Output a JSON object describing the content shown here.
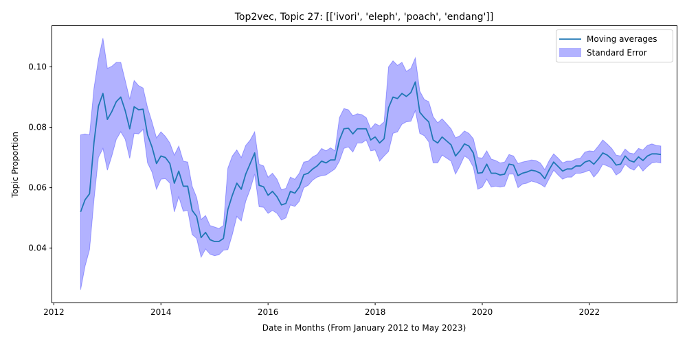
{
  "chart_data": {
    "type": "line",
    "title": "Top2vec, Topic 27: [['ivori', 'eleph', 'poach', 'endang']]",
    "xlabel": "Date in Months (From January 2012 to May 2023)",
    "ylabel": "Topic Proportion",
    "xlim": [
      2011.97,
      2023.63
    ],
    "ylim": [
      0.022,
      0.1135
    ],
    "x_ticks": [
      2012,
      2014,
      2016,
      2018,
      2020,
      2022
    ],
    "y_ticks": [
      0.04,
      0.06,
      0.08,
      0.1
    ],
    "y_tick_labels": [
      "0.04",
      "0.06",
      "0.08",
      "0.10"
    ],
    "grid": false,
    "legend_position": "top-right",
    "colors": {
      "line": "#1f77b4",
      "band": "#0000ff",
      "band_opacity": 0.3
    },
    "series": [
      {
        "name": "Moving averages",
        "x": [
          2012.5,
          2012.583,
          2012.667,
          2012.75,
          2012.833,
          2012.917,
          2013,
          2013.083,
          2013.167,
          2013.25,
          2013.333,
          2013.417,
          2013.5,
          2013.583,
          2013.667,
          2013.75,
          2013.833,
          2013.917,
          2014,
          2014.083,
          2014.167,
          2014.25,
          2014.333,
          2014.417,
          2014.5,
          2014.583,
          2014.667,
          2014.75,
          2014.833,
          2014.917,
          2015,
          2015.083,
          2015.167,
          2015.25,
          2015.333,
          2015.417,
          2015.5,
          2015.583,
          2015.667,
          2015.75,
          2015.833,
          2015.917,
          2016,
          2016.083,
          2016.167,
          2016.25,
          2016.333,
          2016.417,
          2016.5,
          2016.583,
          2016.667,
          2016.75,
          2016.833,
          2016.917,
          2017,
          2017.083,
          2017.167,
          2017.25,
          2017.333,
          2017.417,
          2017.5,
          2017.583,
          2017.667,
          2017.75,
          2017.833,
          2017.917,
          2018,
          2018.083,
          2018.167,
          2018.25,
          2018.333,
          2018.417,
          2018.5,
          2018.583,
          2018.667,
          2018.75,
          2018.833,
          2018.917,
          2019,
          2019.083,
          2019.167,
          2019.25,
          2019.333,
          2019.417,
          2019.5,
          2019.583,
          2019.667,
          2019.75,
          2019.833,
          2019.917,
          2020,
          2020.083,
          2020.167,
          2020.25,
          2020.333,
          2020.417,
          2020.5,
          2020.583,
          2020.667,
          2020.75,
          2020.833,
          2020.917,
          2021,
          2021.083,
          2021.167,
          2021.25,
          2021.333,
          2021.417,
          2021.5,
          2021.583,
          2021.667,
          2021.75,
          2021.833,
          2021.917,
          2022,
          2022.083,
          2022.167,
          2022.25,
          2022.333,
          2022.417,
          2022.5,
          2022.583,
          2022.667,
          2022.75,
          2022.833,
          2022.917,
          2023,
          2023.083,
          2023.167,
          2023.25,
          2023.333
        ],
        "values": [
          0.052,
          0.056,
          0.058,
          0.075,
          0.087,
          0.0912,
          0.0826,
          0.0852,
          0.0885,
          0.09,
          0.0855,
          0.0795,
          0.0868,
          0.0858,
          0.086,
          0.0775,
          0.0735,
          0.068,
          0.0705,
          0.07,
          0.068,
          0.0615,
          0.0655,
          0.0605,
          0.0605,
          0.0525,
          0.0505,
          0.0435,
          0.0452,
          0.0428,
          0.0422,
          0.0422,
          0.0432,
          0.0528,
          0.0575,
          0.0615,
          0.0595,
          0.0645,
          0.068,
          0.0715,
          0.0608,
          0.0603,
          0.0575,
          0.0588,
          0.057,
          0.0543,
          0.0548,
          0.0588,
          0.0582,
          0.0602,
          0.0643,
          0.0648,
          0.0662,
          0.0672,
          0.0688,
          0.0682,
          0.0692,
          0.0692,
          0.0758,
          0.0795,
          0.0797,
          0.0778,
          0.0795,
          0.0795,
          0.0795,
          0.0758,
          0.0768,
          0.0748,
          0.0762,
          0.0865,
          0.09,
          0.0895,
          0.0912,
          0.0902,
          0.0915,
          0.095,
          0.085,
          0.0832,
          0.0818,
          0.0758,
          0.0748,
          0.0768,
          0.0755,
          0.0742,
          0.0705,
          0.0722,
          0.0745,
          0.0738,
          0.0715,
          0.0648,
          0.065,
          0.0678,
          0.0648,
          0.0648,
          0.0642,
          0.0645,
          0.0678,
          0.0675,
          0.064,
          0.0648,
          0.0652,
          0.0658,
          0.0655,
          0.0648,
          0.063,
          0.066,
          0.0685,
          0.067,
          0.0655,
          0.0662,
          0.0662,
          0.0672,
          0.0672,
          0.0685,
          0.069,
          0.0678,
          0.0695,
          0.0715,
          0.0708,
          0.0695,
          0.0675,
          0.0678,
          0.0705,
          0.069,
          0.0685,
          0.0702,
          0.069,
          0.0705,
          0.0712,
          0.0712,
          0.071
        ]
      },
      {
        "name": "Standard Error",
        "lower": [
          0.0262,
          0.034,
          0.0395,
          0.056,
          0.07,
          0.073,
          0.0658,
          0.0705,
          0.076,
          0.0785,
          0.076,
          0.0697,
          0.078,
          0.0778,
          0.0793,
          0.0682,
          0.0652,
          0.0595,
          0.0628,
          0.063,
          0.0615,
          0.052,
          0.057,
          0.0522,
          0.0525,
          0.0445,
          0.0432,
          0.037,
          0.0397,
          0.038,
          0.0375,
          0.0378,
          0.0393,
          0.0395,
          0.0445,
          0.0505,
          0.049,
          0.0555,
          0.0595,
          0.0645,
          0.0537,
          0.0535,
          0.0515,
          0.0525,
          0.0515,
          0.0493,
          0.05,
          0.0543,
          0.0538,
          0.0555,
          0.06,
          0.0608,
          0.0625,
          0.0635,
          0.064,
          0.0642,
          0.0652,
          0.0662,
          0.0688,
          0.073,
          0.0735,
          0.0718,
          0.0748,
          0.0748,
          0.0758,
          0.0722,
          0.0725,
          0.0688,
          0.0705,
          0.072,
          0.078,
          0.0785,
          0.081,
          0.0818,
          0.082,
          0.0855,
          0.078,
          0.0772,
          0.0752,
          0.0682,
          0.0682,
          0.0708,
          0.0698,
          0.0688,
          0.0645,
          0.0672,
          0.0705,
          0.0695,
          0.0668,
          0.0595,
          0.0602,
          0.0628,
          0.0602,
          0.0605,
          0.0602,
          0.0605,
          0.0645,
          0.0645,
          0.06,
          0.0612,
          0.0615,
          0.0622,
          0.0618,
          0.0612,
          0.0602,
          0.063,
          0.0658,
          0.0642,
          0.0628,
          0.0635,
          0.0635,
          0.0648,
          0.0648,
          0.0652,
          0.0658,
          0.0635,
          0.0652,
          0.0678,
          0.0672,
          0.0665,
          0.0642,
          0.0652,
          0.0678,
          0.0665,
          0.0658,
          0.0675,
          0.0655,
          0.067,
          0.0682,
          0.0685,
          0.0682
        ],
        "upper": [
          0.0775,
          0.0778,
          0.0775,
          0.093,
          0.1025,
          0.1095,
          0.0995,
          0.1002,
          0.1015,
          0.1015,
          0.0955,
          0.0893,
          0.0955,
          0.0938,
          0.093,
          0.0865,
          0.0818,
          0.0765,
          0.0785,
          0.077,
          0.0748,
          0.0708,
          0.0738,
          0.0688,
          0.0685,
          0.0605,
          0.0568,
          0.0495,
          0.0508,
          0.0475,
          0.047,
          0.0465,
          0.0475,
          0.0665,
          0.0705,
          0.0725,
          0.07,
          0.074,
          0.0758,
          0.0785,
          0.0678,
          0.0672,
          0.0635,
          0.0648,
          0.0628,
          0.0593,
          0.0598,
          0.0635,
          0.0628,
          0.0648,
          0.0685,
          0.0688,
          0.0702,
          0.071,
          0.073,
          0.0722,
          0.0732,
          0.0722,
          0.0832,
          0.0862,
          0.0858,
          0.0838,
          0.0845,
          0.0842,
          0.0832,
          0.0795,
          0.0812,
          0.0805,
          0.0818,
          0.1,
          0.102,
          0.1005,
          0.1015,
          0.0985,
          0.0995,
          0.103,
          0.092,
          0.0892,
          0.0885,
          0.0835,
          0.0815,
          0.0828,
          0.0812,
          0.0795,
          0.0765,
          0.0772,
          0.0788,
          0.078,
          0.0762,
          0.07,
          0.0698,
          0.0722,
          0.0695,
          0.069,
          0.0682,
          0.0685,
          0.071,
          0.0705,
          0.068,
          0.0685,
          0.0688,
          0.0692,
          0.069,
          0.0682,
          0.066,
          0.069,
          0.0712,
          0.0698,
          0.0682,
          0.0688,
          0.0688,
          0.0695,
          0.0698,
          0.0718,
          0.0722,
          0.072,
          0.0738,
          0.0758,
          0.0745,
          0.073,
          0.0708,
          0.0705,
          0.0728,
          0.0715,
          0.0712,
          0.073,
          0.0725,
          0.074,
          0.0745,
          0.074,
          0.0738
        ]
      }
    ]
  }
}
